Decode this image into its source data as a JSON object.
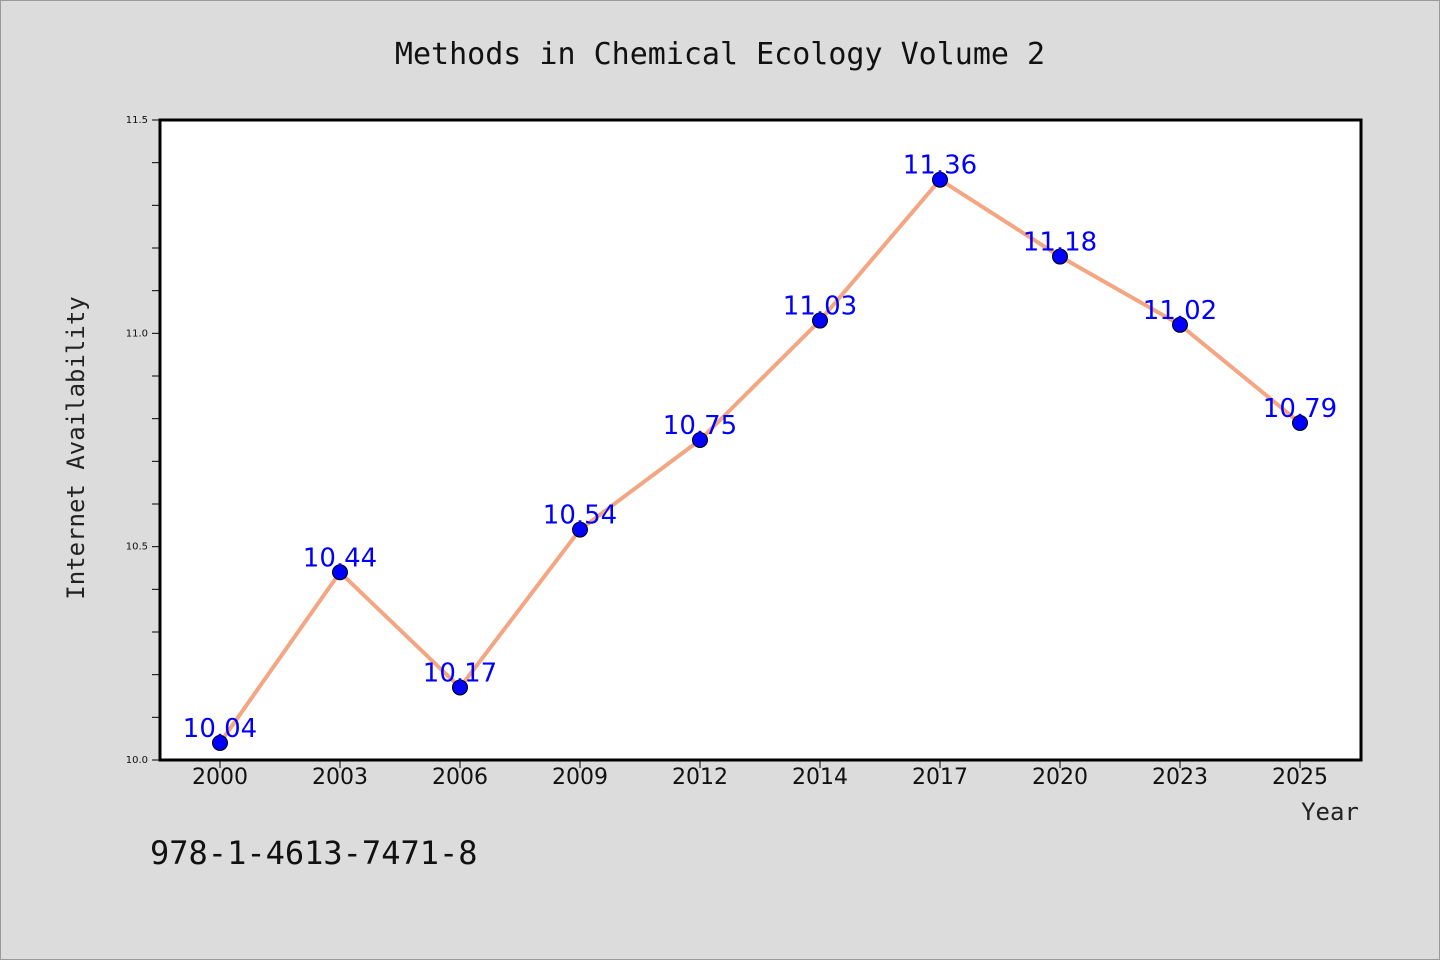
{
  "chart_data": {
    "type": "line",
    "title": "Methods in Chemical Ecology Volume 2",
    "xlabel": "Year",
    "ylabel": "Internet Availability",
    "categories": [
      "2000",
      "2003",
      "2006",
      "2009",
      "2012",
      "2014",
      "2017",
      "2020",
      "2023",
      "2025"
    ],
    "series": [
      {
        "values": [
          10.04,
          10.44,
          10.17,
          10.54,
          10.75,
          11.03,
          11.36,
          11.18,
          11.02,
          10.79
        ],
        "data_labels": [
          "10.04",
          "10.44",
          "10.17",
          "10.54",
          "10.75",
          "11.03",
          "11.36",
          "11.18",
          "11.02",
          "10.79"
        ]
      }
    ],
    "ylim": [
      10.0,
      11.5
    ],
    "yticks": [
      "10.0",
      "10.5",
      "11.0",
      "11.5"
    ],
    "grid": false,
    "colors": {
      "line": "#f4a582",
      "marker": "#0000ff",
      "data_label": "#0000ff",
      "background": "#dcdcdc",
      "plot_area": "#ffffff"
    }
  },
  "footer": {
    "isbn": "978-1-4613-7471-8"
  }
}
